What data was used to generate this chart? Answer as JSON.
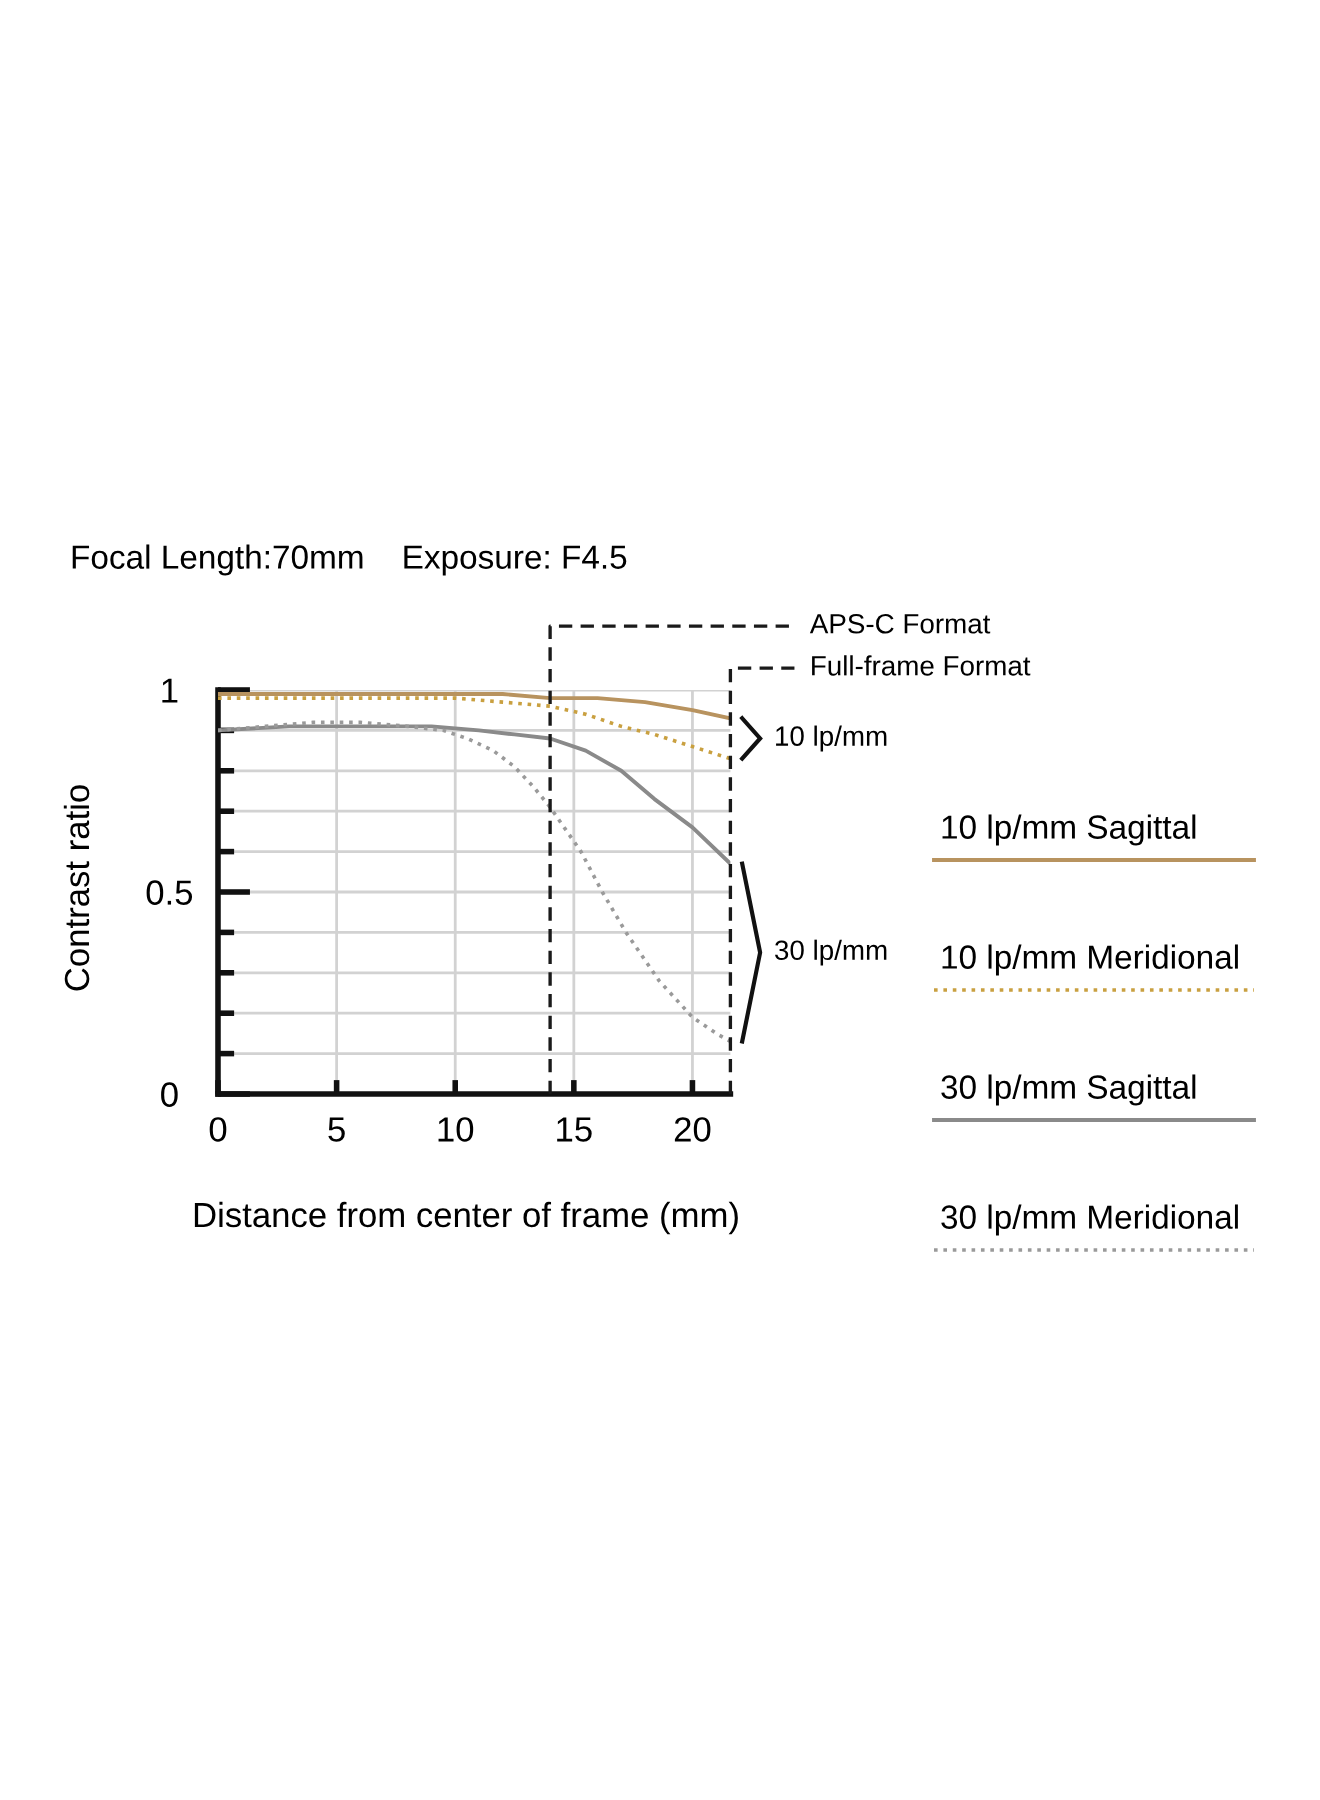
{
  "chart_data": {
    "type": "line",
    "title": "Focal Length:70mm    Exposure: F4.5",
    "xlabel": "Distance from center of frame (mm)",
    "ylabel": "Contrast ratio",
    "xlim": [
      0,
      21.6
    ],
    "ylim": [
      0,
      1
    ],
    "xticks": [
      0,
      5,
      10,
      15,
      20
    ],
    "yticks": [
      0,
      {
        "value": 0.1,
        "label": null
      },
      {
        "value": 0.2,
        "label": null
      },
      {
        "value": 0.3,
        "label": null
      },
      {
        "value": 0.4,
        "label": null
      },
      0.5,
      {
        "value": 0.6,
        "label": null
      },
      {
        "value": 0.7,
        "label": null
      },
      {
        "value": 0.8,
        "label": null
      },
      {
        "value": 0.9,
        "label": null
      },
      1
    ],
    "grid": true,
    "legend": "right",
    "series": [
      {
        "name": "10 lp/mm Sagittal",
        "color": "#b8935f",
        "line_style": "solid",
        "x": [
          0,
          5,
          10,
          12,
          14,
          16,
          18,
          20,
          21.6
        ],
        "values": [
          0.99,
          0.99,
          0.99,
          0.99,
          0.98,
          0.98,
          0.97,
          0.95,
          0.93
        ]
      },
      {
        "name": "10 lp/mm Meridional",
        "color": "#c9a040",
        "line_style": "dotted",
        "x": [
          0,
          5,
          10,
          12,
          14,
          15.5,
          17,
          18.4,
          20,
          21.6
        ],
        "values": [
          0.98,
          0.98,
          0.98,
          0.97,
          0.96,
          0.94,
          0.91,
          0.89,
          0.86,
          0.83
        ]
      },
      {
        "name": "30 lp/mm Sagittal",
        "color": "#8a8a8a",
        "line_style": "solid",
        "x": [
          0,
          3,
          6,
          9,
          11,
          12.5,
          14,
          15.5,
          17,
          18.4,
          20,
          21.6
        ],
        "values": [
          0.9,
          0.91,
          0.91,
          0.91,
          0.9,
          0.89,
          0.88,
          0.85,
          0.8,
          0.73,
          0.66,
          0.57
        ]
      },
      {
        "name": "30 lp/mm Meridional",
        "color": "#9a9a9a",
        "line_style": "dotted",
        "x": [
          0,
          2,
          4,
          6,
          8,
          9.5,
          10.5,
          11.6,
          12.5,
          13.3,
          14,
          15.3,
          16.2,
          17.2,
          18.6,
          20,
          21,
          21.6
        ],
        "values": [
          0.9,
          0.91,
          0.92,
          0.92,
          0.91,
          0.9,
          0.88,
          0.85,
          0.81,
          0.76,
          0.71,
          0.6,
          0.5,
          0.4,
          0.28,
          0.19,
          0.15,
          0.13
        ]
      }
    ],
    "ref_lines": [
      {
        "axis": "x",
        "value": 14,
        "label": "APS-C Format",
        "color": "#1a1a1a",
        "line_style": "dashed"
      },
      {
        "axis": "x",
        "value": 21.6,
        "label": "Full-frame Format",
        "color": "#1a1a1a",
        "line_style": "dashed"
      }
    ],
    "annotations": [
      {
        "text": "10 lp/mm",
        "x": 21.6,
        "y": 0.88
      },
      {
        "text": "30 lp/mm",
        "x": 21.6,
        "y": 0.35
      }
    ]
  }
}
